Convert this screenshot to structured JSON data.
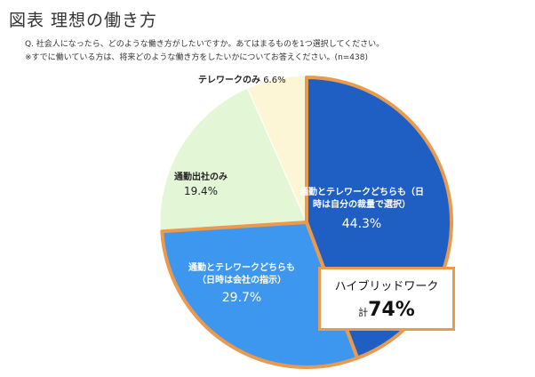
{
  "figure": {
    "title": "図表 理想の働き方",
    "question_line1": "Q. 社会人になったら、どのような働き方がしたいですか。あてはまるものを1つ選択してください。",
    "question_line2": "※すでに働いている方は、将来どのような働き方をしたいかについてお答えください。(n=438)"
  },
  "chart_data": {
    "type": "pie",
    "title": "図表 理想の働き方",
    "n": 438,
    "slices": [
      {
        "label": "通勤とテレワークどちらも（日時は自分の裁量で選択）",
        "label_line1": "通勤とテレワークどちらも（日",
        "label_line2": "時は自分の裁量で選択）",
        "value": 44.3,
        "value_text": "44.3%",
        "color": "#1f5fc4"
      },
      {
        "label": "通勤とテレワークどちらも（日時は会社の指示）",
        "label_line1": "通勤とテレワークどちらも",
        "label_line2": "（日時は会社の指示）",
        "value": 29.7,
        "value_text": "29.7%",
        "color": "#3d97ee"
      },
      {
        "label": "通勤出社のみ",
        "label_line1": "通勤出社のみ",
        "value": 19.4,
        "value_text": "19.4%",
        "color": "#e3f7d6"
      },
      {
        "label": "テレワークのみ",
        "label_line1": "テレワークのみ",
        "value": 6.6,
        "value_text": "6.6%",
        "color": "#fdf6d6"
      }
    ],
    "highlight_color": "#e89a4e",
    "annotation": {
      "label": "ハイブリッドワーク",
      "prefix": "計",
      "value": 74,
      "value_text": "74%"
    }
  }
}
